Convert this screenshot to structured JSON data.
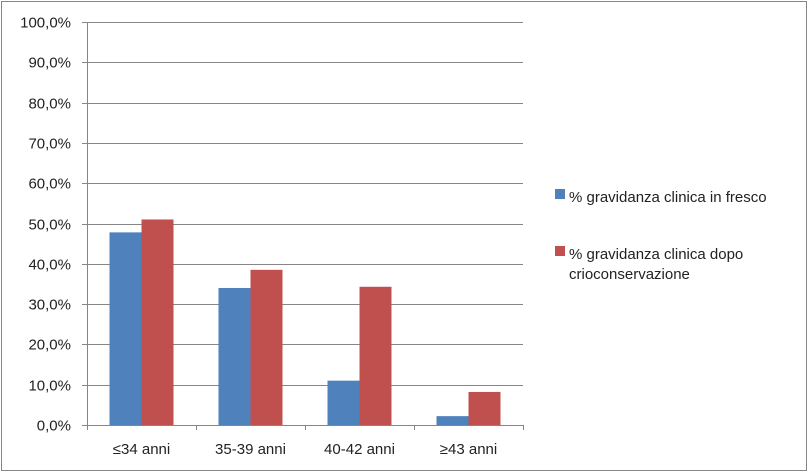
{
  "chart_data": {
    "type": "bar",
    "categories": [
      "≤34 anni",
      "35-39 anni",
      "40-42 anni",
      "≥43 anni"
    ],
    "series": [
      {
        "name": "% gravidanza clinica in fresco",
        "values": [
          47.8,
          34.0,
          11.0,
          2.2
        ],
        "color": "#4F81BD"
      },
      {
        "name": "% gravidanza clinica dopo crioconservazione",
        "values": [
          51.0,
          38.5,
          34.3,
          8.2
        ],
        "color": "#C0504D"
      }
    ],
    "title": "",
    "xlabel": "",
    "ylabel": "",
    "ylim": [
      0,
      100
    ],
    "yticks": [
      "0,0%",
      "10,0%",
      "20,0%",
      "30,0%",
      "40,0%",
      "50,0%",
      "60,0%",
      "70,0%",
      "80,0%",
      "90,0%",
      "100,0%"
    ],
    "grid": true,
    "legend": "right",
    "gridline_color": "#868686"
  },
  "legend": {
    "items": [
      {
        "lines": [
          "% gravidanza clinica in fresco"
        ]
      },
      {
        "lines": [
          "% gravidanza clinica dopo",
          "crioconservazione"
        ]
      }
    ]
  }
}
